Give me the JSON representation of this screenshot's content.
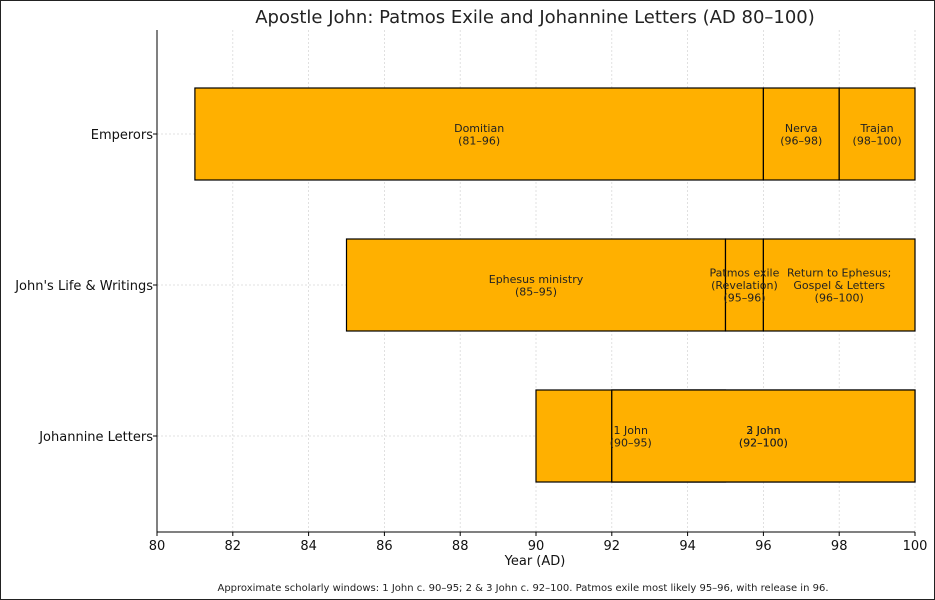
{
  "chart_data": {
    "type": "bar",
    "orientation": "horizontal-range",
    "title": "Apostle John: Patmos Exile and Johannine Letters (AD 80–100)",
    "xlabel": "Year (AD)",
    "ylabel": "",
    "xlim": [
      80,
      100
    ],
    "x_ticks": [
      80,
      82,
      84,
      86,
      88,
      90,
      92,
      94,
      96,
      98,
      100
    ],
    "grid": true,
    "bar_color": "#FFB000",
    "categories": [
      "Emperors",
      "John's Life & Writings",
      "Johannine Letters"
    ],
    "series": [
      {
        "category": "Emperors",
        "segments": [
          {
            "start": 81,
            "end": 96,
            "label": "Domitian\n(81–96)"
          },
          {
            "start": 96,
            "end": 98,
            "label": "Nerva\n(96–98)"
          },
          {
            "start": 98,
            "end": 100,
            "label": "Trajan\n(98–100)"
          }
        ]
      },
      {
        "category": "John's Life & Writings",
        "segments": [
          {
            "start": 85,
            "end": 95,
            "label": "Ephesus ministry\n(85–95)"
          },
          {
            "start": 95,
            "end": 96,
            "label": "Patmos exile\n(Revelation)\n(95–96)"
          },
          {
            "start": 96,
            "end": 100,
            "label": "Return to Ephesus;\nGospel & Letters\n(96–100)"
          }
        ]
      },
      {
        "category": "Johannine Letters",
        "segments": [
          {
            "start": 90,
            "end": 95,
            "label": "1 John\n(90–95)"
          },
          {
            "start": 92,
            "end": 100,
            "label": "2 John\n(92–100)"
          },
          {
            "start": 92,
            "end": 100,
            "label": "3 John\n(92–100)"
          }
        ]
      }
    ],
    "footnote": "Approximate scholarly windows: 1 John c. 90–95; 2 & 3 John c. 92–100. Patmos exile most likely 95–96, with release in 96."
  }
}
